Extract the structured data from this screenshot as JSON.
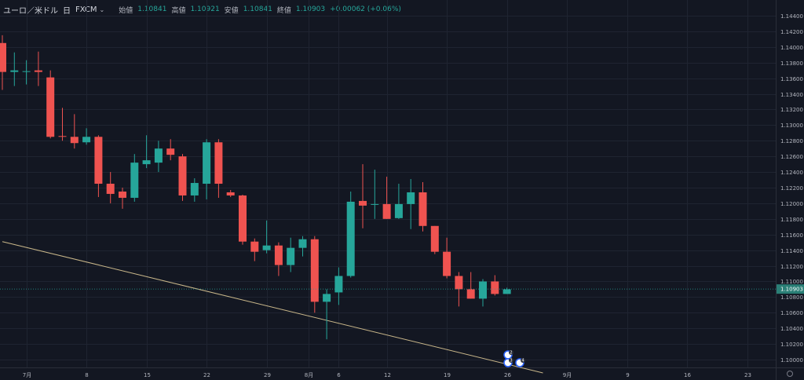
{
  "legend": {
    "symbol": "ユーロ／米ドル",
    "interval": "日",
    "source": "FXCM",
    "open_label": "始値",
    "open_value": "1.10841",
    "high_label": "高値",
    "high_value": "1.10921",
    "low_label": "安値",
    "low_value": "1.10841",
    "close_label": "終値",
    "close_value": "1.10903",
    "change": "+0.00062 (+0.06%)"
  },
  "current_price_label": "1.10903",
  "colors": {
    "background": "#131722",
    "grid": "#1f2431",
    "up": "#26a69a",
    "down": "#ef5350",
    "trendline": "#c9b78a",
    "price_label_bg": "#2a7f76",
    "text": "#b2b5be"
  },
  "markers": [
    "2",
    "3",
    "4"
  ],
  "chart_data": {
    "type": "candlestick",
    "y_ticks": [
      "1.14400",
      "1.14200",
      "1.14000",
      "1.13800",
      "1.13600",
      "1.13400",
      "1.13200",
      "1.13000",
      "1.12800",
      "1.12600",
      "1.12400",
      "1.12200",
      "1.12000",
      "1.11800",
      "1.11600",
      "1.11400",
      "1.11200",
      "1.11000",
      "1.10800",
      "1.10600",
      "1.10400",
      "1.10200",
      "1.10000"
    ],
    "ylim": [
      1.0986,
      1.1455
    ],
    "x_ticks": [
      {
        "label": "7月",
        "slot": 2
      },
      {
        "label": "8",
        "slot": 7
      },
      {
        "label": "15",
        "slot": 12
      },
      {
        "label": "22",
        "slot": 17
      },
      {
        "label": "29",
        "slot": 22
      },
      {
        "label": "8月",
        "slot": 25.5
      },
      {
        "label": "6",
        "slot": 28
      },
      {
        "label": "12",
        "slot": 32
      },
      {
        "label": "19",
        "slot": 37
      },
      {
        "label": "26",
        "slot": 42
      },
      {
        "label": "9月",
        "slot": 47
      },
      {
        "label": "9",
        "slot": 52
      },
      {
        "label": "16",
        "slot": 57
      },
      {
        "label": "23",
        "slot": 62
      }
    ],
    "candles": [
      {
        "slot": 0,
        "o": 1.1405,
        "h": 1.1415,
        "l": 1.1345,
        "c": 1.1368
      },
      {
        "slot": 1,
        "o": 1.1368,
        "h": 1.1393,
        "l": 1.135,
        "c": 1.137
      },
      {
        "slot": 2,
        "o": 1.1369,
        "h": 1.1383,
        "l": 1.1352,
        "c": 1.1369
      },
      {
        "slot": 3,
        "o": 1.137,
        "h": 1.1394,
        "l": 1.135,
        "c": 1.1368
      },
      {
        "slot": 4,
        "o": 1.1361,
        "h": 1.137,
        "l": 1.1283,
        "c": 1.1285
      },
      {
        "slot": 5,
        "o": 1.1286,
        "h": 1.1322,
        "l": 1.128,
        "c": 1.1285
      },
      {
        "slot": 6,
        "o": 1.1285,
        "h": 1.1314,
        "l": 1.127,
        "c": 1.1277
      },
      {
        "slot": 7,
        "o": 1.1278,
        "h": 1.1296,
        "l": 1.1275,
        "c": 1.1285
      },
      {
        "slot": 8,
        "o": 1.1285,
        "h": 1.1287,
        "l": 1.1208,
        "c": 1.1225
      },
      {
        "slot": 9,
        "o": 1.1225,
        "h": 1.124,
        "l": 1.12,
        "c": 1.1212
      },
      {
        "slot": 10,
        "o": 1.1215,
        "h": 1.122,
        "l": 1.1193,
        "c": 1.1207
      },
      {
        "slot": 11,
        "o": 1.1207,
        "h": 1.1263,
        "l": 1.1202,
        "c": 1.1252
      },
      {
        "slot": 12,
        "o": 1.125,
        "h": 1.1287,
        "l": 1.1245,
        "c": 1.1255
      },
      {
        "slot": 13,
        "o": 1.1252,
        "h": 1.128,
        "l": 1.124,
        "c": 1.127
      },
      {
        "slot": 14,
        "o": 1.127,
        "h": 1.1282,
        "l": 1.1255,
        "c": 1.1262
      },
      {
        "slot": 15,
        "o": 1.126,
        "h": 1.1263,
        "l": 1.1203,
        "c": 1.121
      },
      {
        "slot": 16,
        "o": 1.121,
        "h": 1.1232,
        "l": 1.1202,
        "c": 1.1226
      },
      {
        "slot": 17,
        "o": 1.1225,
        "h": 1.1282,
        "l": 1.1205,
        "c": 1.1278
      },
      {
        "slot": 18,
        "o": 1.1278,
        "h": 1.1282,
        "l": 1.1207,
        "c": 1.1225
      },
      {
        "slot": 19,
        "o": 1.1214,
        "h": 1.1217,
        "l": 1.1208,
        "c": 1.121
      },
      {
        "slot": 20,
        "o": 1.121,
        "h": 1.1211,
        "l": 1.1147,
        "c": 1.1151
      },
      {
        "slot": 21,
        "o": 1.1151,
        "h": 1.1155,
        "l": 1.1126,
        "c": 1.1138
      },
      {
        "slot": 22,
        "o": 1.114,
        "h": 1.1178,
        "l": 1.1136,
        "c": 1.1146
      },
      {
        "slot": 23,
        "o": 1.1146,
        "h": 1.115,
        "l": 1.1107,
        "c": 1.1121
      },
      {
        "slot": 24,
        "o": 1.1121,
        "h": 1.1156,
        "l": 1.1112,
        "c": 1.1143
      },
      {
        "slot": 25,
        "o": 1.1143,
        "h": 1.1158,
        "l": 1.1132,
        "c": 1.1154
      },
      {
        "slot": 26,
        "o": 1.1154,
        "h": 1.1158,
        "l": 1.106,
        "c": 1.1074
      },
      {
        "slot": 27,
        "o": 1.1074,
        "h": 1.109,
        "l": 1.1026,
        "c": 1.1084
      },
      {
        "slot": 28,
        "o": 1.1086,
        "h": 1.1118,
        "l": 1.107,
        "c": 1.1107
      },
      {
        "slot": 29,
        "o": 1.1107,
        "h": 1.1215,
        "l": 1.1105,
        "c": 1.1202
      },
      {
        "slot": 30,
        "o": 1.1203,
        "h": 1.125,
        "l": 1.1168,
        "c": 1.1197
      },
      {
        "slot": 31,
        "o": 1.1199,
        "h": 1.1243,
        "l": 1.118,
        "c": 1.1199
      },
      {
        "slot": 32,
        "o": 1.1199,
        "h": 1.1234,
        "l": 1.118,
        "c": 1.118
      },
      {
        "slot": 33,
        "o": 1.1181,
        "h": 1.1225,
        "l": 1.118,
        "c": 1.1199
      },
      {
        "slot": 34,
        "o": 1.1199,
        "h": 1.1231,
        "l": 1.1167,
        "c": 1.1214
      },
      {
        "slot": 35,
        "o": 1.1214,
        "h": 1.1227,
        "l": 1.1164,
        "c": 1.1171
      },
      {
        "slot": 36,
        "o": 1.1171,
        "h": 1.117,
        "l": 1.1135,
        "c": 1.1138
      },
      {
        "slot": 37,
        "o": 1.1138,
        "h": 1.1156,
        "l": 1.1104,
        "c": 1.1107
      },
      {
        "slot": 38,
        "o": 1.1107,
        "h": 1.1112,
        "l": 1.1068,
        "c": 1.109
      },
      {
        "slot": 39,
        "o": 1.109,
        "h": 1.1112,
        "l": 1.1078,
        "c": 1.1078
      },
      {
        "slot": 40,
        "o": 1.1078,
        "h": 1.1103,
        "l": 1.1068,
        "c": 1.11
      },
      {
        "slot": 41,
        "o": 1.11,
        "h": 1.1108,
        "l": 1.1082,
        "c": 1.1084
      },
      {
        "slot": 42,
        "o": 1.1084,
        "h": 1.1092,
        "l": 1.1084,
        "c": 1.109
      }
    ],
    "trendline": {
      "from": {
        "slot": 0,
        "price": 1.1151
      },
      "to": {
        "slot": 45,
        "price": 1.0983
      }
    }
  }
}
